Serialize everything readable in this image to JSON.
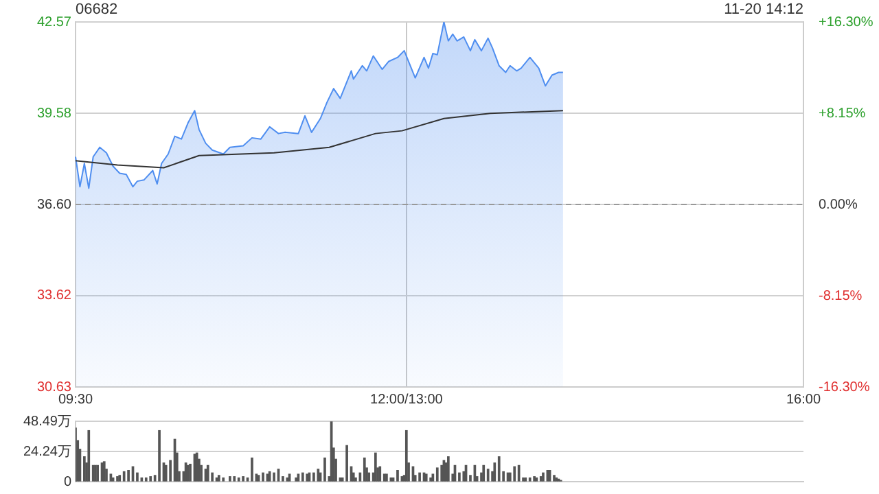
{
  "chart_data": [
    {
      "type": "line",
      "title": "06682",
      "annotations": [
        "11-20 14:12"
      ],
      "categories": [
        "09:30",
        null,
        null,
        null,
        null,
        null,
        null,
        null,
        null,
        null,
        null,
        null,
        null,
        null,
        null,
        null,
        null,
        null,
        null,
        null,
        null,
        null,
        null,
        null,
        null,
        null,
        null,
        null,
        null,
        null,
        null,
        null,
        null,
        null,
        null,
        null,
        null,
        null,
        null,
        null,
        null,
        null,
        null,
        null,
        null,
        null,
        null,
        null,
        null,
        null,
        null,
        null,
        null,
        null,
        null,
        null,
        null,
        null,
        null,
        null,
        null,
        null,
        null,
        null,
        null,
        null,
        null,
        null,
        null,
        null,
        null,
        null,
        null,
        null,
        null,
        null,
        null,
        null,
        null,
        null,
        null,
        null,
        null,
        null,
        null,
        null,
        null,
        null,
        null,
        null,
        null,
        null,
        null,
        null,
        null,
        null,
        null,
        null,
        null,
        null,
        null,
        null,
        null,
        null,
        null,
        null,
        null,
        null,
        null,
        null,
        null,
        null,
        null,
        null,
        null,
        null,
        null,
        null,
        null,
        null,
        null,
        null,
        null,
        null,
        null,
        null,
        null,
        null,
        null,
        null,
        null,
        null,
        null,
        null,
        null,
        null,
        null,
        null,
        null,
        null,
        null,
        null,
        null,
        null,
        null,
        null,
        null,
        null,
        null,
        null,
        "12:00/13:00",
        null,
        null,
        null,
        null,
        null,
        null,
        null,
        null,
        null,
        null,
        null,
        null,
        null,
        null,
        null,
        null,
        null,
        null,
        null,
        null,
        null,
        null,
        null,
        null,
        null,
        null,
        null,
        null,
        null,
        null,
        null,
        null,
        null,
        null,
        null,
        null,
        null,
        null,
        null,
        null,
        null,
        null,
        null,
        null,
        null,
        null,
        null,
        null,
        null,
        null,
        null,
        null,
        null,
        null,
        null,
        null,
        null,
        null,
        null,
        null,
        null,
        null,
        null,
        null,
        null,
        null,
        null,
        null,
        null,
        null,
        null,
        null,
        null,
        null,
        null,
        null,
        null,
        null,
        null,
        null,
        null,
        null,
        null,
        null,
        null,
        null,
        null,
        null,
        null,
        null,
        null,
        null,
        null,
        null,
        null,
        null,
        null,
        null,
        null,
        null,
        null,
        null,
        null,
        null,
        null,
        null,
        null,
        null,
        null,
        null,
        null,
        null,
        null,
        null,
        null,
        null,
        null,
        null,
        null,
        null,
        null,
        null,
        null,
        null,
        null,
        null,
        null,
        null,
        null,
        null,
        null,
        null,
        null,
        null,
        null,
        null,
        null,
        null,
        null,
        null,
        null,
        null,
        null,
        null,
        null,
        null,
        null,
        null,
        null,
        null,
        null,
        null,
        null,
        null,
        null,
        null,
        null,
        null,
        null,
        null,
        null,
        null,
        null,
        null,
        null,
        null,
        null,
        null,
        null,
        null,
        null,
        null,
        null,
        null,
        null,
        null,
        null,
        null,
        null,
        "16:00"
      ],
      "ylim": [
        30.63,
        42.57
      ],
      "yticks": [
        30.63,
        33.62,
        {
          "value": 36.6,
          "label": "36.60"
        },
        39.58,
        42.57
      ],
      "y2lim": [
        -16.3,
        16.3
      ],
      "y2ticks": [
        {
          "value": -16.3,
          "label": "-16.30%"
        },
        {
          "value": -8.15,
          "label": "-8.15%"
        },
        {
          "value": 0,
          "label": "0.00%"
        },
        {
          "value": 8.15,
          "label": "+8.15%"
        },
        {
          "value": 16.3,
          "label": "+16.30%"
        }
      ],
      "ref_lines": [
        {
          "axis": "y",
          "value": 36.6,
          "color": "#999999",
          "line_style": "dashed"
        }
      ],
      "grid": true,
      "marker": "none",
      "line_style": "solid",
      "series": [
        {
          "type": "area",
          "color": "#4f8ef0",
          "values": [
            38.16,
            null,
            37.18,
            null,
            37.94,
            null,
            37.13,
            null,
            38.16,
            null,
            null,
            38.47,
            null,
            null,
            38.29,
            null,
            null,
            37.85,
            null,
            null,
            37.62,
            null,
            null,
            37.58,
            null,
            null,
            37.18,
            null,
            37.36,
            null,
            null,
            37.4,
            null,
            null,
            null,
            37.71,
            null,
            37.27,
            null,
            37.94,
            null,
            null,
            38.25,
            null,
            null,
            38.83,
            null,
            null,
            38.74,
            null,
            null,
            39.27,
            null,
            null,
            39.67,
            null,
            39.05,
            null,
            null,
            38.6,
            null,
            null,
            38.38,
            null,
            null,
            null,
            null,
            38.25,
            null,
            null,
            38.47,
            null,
            null,
            null,
            null,
            null,
            38.52,
            null,
            null,
            null,
            38.78,
            null,
            null,
            null,
            38.74,
            null,
            null,
            null,
            39.14,
            null,
            null,
            null,
            38.92,
            null,
            null,
            38.96,
            null,
            null,
            null,
            null,
            null,
            38.92,
            null,
            null,
            39.5,
            null,
            null,
            38.96,
            null,
            null,
            null,
            39.41,
            null,
            null,
            39.94,
            null,
            null,
            40.39,
            null,
            null,
            40.07,
            null,
            null,
            40.61,
            null,
            40.97,
            40.7,
            null,
            null,
            null,
            41.14,
            null,
            40.97,
            null,
            null,
            41.46,
            null,
            null,
            null,
            41.02,
            null,
            null,
            41.28,
            null,
            null,
            null,
            41.41,
            null,
            null,
            41.63,
            null,
            null,
            null,
            null,
            40.74,
            null,
            null,
            null,
            41.41,
            null,
            41.06,
            null,
            41.54,
            null,
            41.5,
            null,
            null,
            42.57,
            null,
            41.95,
            null,
            42.17,
            null,
            41.95,
            null,
            null,
            42.08,
            null,
            null,
            41.63,
            null,
            41.99,
            null,
            null,
            41.63,
            null,
            null,
            42.04,
            null,
            41.72,
            null,
            null,
            41.14,
            null,
            null,
            40.92,
            null,
            41.14,
            null,
            null,
            40.97,
            null,
            41.06,
            null,
            null,
            null,
            41.41,
            null,
            null,
            null,
            41.06,
            null,
            null,
            40.48,
            null,
            null,
            40.83,
            null,
            null,
            40.92,
            null,
            40.92,
            null,
            null,
            null,
            null,
            null,
            null,
            null,
            null,
            null,
            null,
            null,
            null,
            null,
            null,
            null,
            null,
            null,
            null,
            null,
            null,
            null,
            null,
            null,
            null,
            null,
            null,
            null,
            null,
            null,
            null,
            null,
            null,
            null,
            null,
            null,
            null,
            null,
            null,
            null,
            null,
            null,
            null,
            null,
            null,
            null,
            null,
            null,
            null,
            null,
            null,
            null,
            null,
            null,
            null,
            null,
            null,
            null,
            null,
            null,
            null,
            null,
            null,
            null,
            null,
            null,
            null,
            null,
            null,
            null,
            null,
            null,
            null,
            null,
            null,
            null,
            null,
            null,
            null,
            null,
            null,
            null,
            null,
            null,
            null,
            null,
            null,
            null,
            null,
            null,
            null,
            null,
            null,
            null,
            null,
            null,
            null,
            null,
            null,
            null,
            null,
            null,
            null,
            null,
            null,
            null,
            null,
            null,
            null,
            null
          ]
        },
        {
          "type": "line",
          "color": "#333333",
          "values": [
            38.03,
            null,
            null,
            null,
            null,
            null,
            null,
            null,
            null,
            null,
            null,
            null,
            null,
            null,
            null,
            null,
            null,
            null,
            null,
            37.89,
            null,
            null,
            null,
            null,
            null,
            null,
            null,
            null,
            null,
            null,
            null,
            null,
            null,
            null,
            null,
            null,
            null,
            null,
            null,
            null,
            37.8,
            null,
            null,
            null,
            null,
            null,
            null,
            null,
            null,
            null,
            null,
            null,
            null,
            null,
            null,
            null,
            38.2,
            null,
            null,
            null,
            null,
            null,
            null,
            null,
            null,
            null,
            null,
            null,
            null,
            null,
            null,
            null,
            null,
            null,
            null,
            null,
            null,
            null,
            null,
            null,
            null,
            null,
            null,
            null,
            null,
            null,
            null,
            null,
            null,
            null,
            38.29,
            null,
            null,
            null,
            null,
            null,
            null,
            null,
            null,
            null,
            null,
            null,
            null,
            null,
            null,
            null,
            null,
            null,
            null,
            null,
            null,
            null,
            null,
            null,
            null,
            38.47,
            null,
            null,
            null,
            null,
            null,
            null,
            null,
            null,
            null,
            null,
            null,
            null,
            null,
            null,
            null,
            null,
            null,
            null,
            null,
            null,
            38.92,
            null,
            null,
            null,
            null,
            null,
            null,
            null,
            null,
            null,
            null,
            null,
            39.01,
            null,
            null,
            null,
            null,
            null,
            null,
            null,
            null,
            null,
            null,
            null,
            null,
            null,
            null,
            null,
            null,
            null,
            null,
            39.41,
            null,
            null,
            null,
            null,
            null,
            null,
            null,
            null,
            null,
            null,
            null,
            null,
            null,
            null,
            null,
            null,
            null,
            null,
            null,
            null,
            39.58,
            null,
            null,
            null,
            null,
            null,
            null,
            null,
            null,
            null,
            null,
            null,
            null,
            null,
            null,
            null,
            null,
            null,
            null,
            null,
            null,
            null,
            null,
            null,
            null,
            null,
            null,
            null,
            null,
            null,
            null,
            null,
            null,
            39.67,
            null,
            null,
            null,
            null,
            null,
            null,
            null,
            null,
            null,
            null,
            null,
            null,
            null,
            null,
            null,
            null,
            null,
            null,
            null,
            null,
            null,
            null,
            null,
            null,
            null,
            null,
            null,
            null,
            null,
            null,
            null,
            null,
            null,
            null,
            null,
            null,
            null,
            null,
            null,
            null,
            null,
            null,
            null,
            null,
            null,
            null,
            null,
            null,
            null,
            null,
            null,
            null,
            null,
            null,
            null,
            null,
            null,
            null,
            null,
            null,
            null,
            null,
            null,
            null,
            null,
            null,
            null,
            null,
            null,
            null,
            null,
            null,
            null,
            null,
            null,
            null,
            null,
            null,
            null,
            null,
            null,
            null,
            null,
            null,
            null,
            null,
            null,
            null,
            null,
            null,
            null,
            null,
            null,
            null,
            null,
            null,
            null,
            null,
            null,
            null,
            null,
            null,
            null,
            null,
            null,
            null,
            null,
            null,
            null
          ]
        }
      ]
    },
    {
      "type": "bar",
      "color": "#555555",
      "tick_labels": "y",
      "grid": "y",
      "categories": [
        null,
        null,
        null,
        null,
        null,
        null,
        null,
        null,
        null,
        null,
        null,
        null,
        null,
        null,
        null,
        null,
        null,
        null,
        null,
        null,
        null,
        null,
        null,
        null,
        null,
        null,
        null,
        null,
        null,
        null,
        null,
        null,
        null,
        null,
        null,
        null,
        null,
        null,
        null,
        null,
        null,
        null,
        null,
        null,
        null,
        null,
        null,
        null,
        null,
        null,
        null,
        null,
        null,
        null,
        null,
        null,
        null,
        null,
        null,
        null,
        null,
        null,
        null,
        null,
        null,
        null,
        null,
        null,
        null,
        null,
        null,
        null,
        null,
        null,
        null,
        null,
        null,
        null,
        null,
        null,
        null,
        null,
        null,
        null,
        null,
        null,
        null,
        null,
        null,
        null,
        null,
        null,
        null,
        null,
        null,
        null,
        null,
        null,
        null,
        null,
        null,
        null,
        null,
        null,
        null,
        null,
        null,
        null,
        null,
        null,
        null,
        null,
        null,
        null,
        null,
        null,
        null,
        null,
        null,
        null,
        null,
        null,
        null,
        null,
        null,
        null,
        null,
        null,
        null,
        null,
        null,
        null,
        null,
        null,
        null,
        null,
        null,
        null,
        null,
        null,
        null,
        null,
        null,
        null,
        null,
        null,
        null,
        null,
        null,
        null,
        null,
        null,
        null,
        null,
        null,
        null,
        null,
        null,
        null,
        null,
        null,
        null,
        null,
        null,
        null,
        null,
        null,
        null,
        null,
        null,
        null,
        null,
        null,
        null,
        null,
        null,
        null,
        null,
        null,
        null,
        null,
        null,
        null,
        null,
        null,
        null,
        null,
        null,
        null,
        null,
        null,
        null,
        null,
        null,
        null,
        null,
        null,
        null,
        null,
        null,
        null,
        null,
        null,
        null,
        null,
        null,
        null,
        null,
        null,
        null,
        null,
        null,
        null,
        null,
        null,
        null,
        null,
        null,
        null,
        null,
        null,
        null,
        null,
        null,
        null,
        null,
        null,
        null,
        null,
        null,
        null,
        null,
        null,
        null,
        null,
        null,
        null,
        null,
        null,
        null,
        null,
        null,
        null,
        null,
        null,
        null,
        null,
        null,
        null,
        null,
        null,
        null,
        null,
        null,
        null,
        null,
        null,
        null,
        null,
        null,
        null,
        null,
        null,
        null,
        null,
        null,
        null,
        null,
        null,
        null,
        null,
        null,
        null,
        null,
        null,
        null,
        null,
        null,
        null,
        null,
        null,
        null,
        null,
        null,
        null,
        null,
        null,
        null,
        null,
        null,
        null,
        null,
        null,
        null,
        null,
        null,
        null,
        null,
        null,
        null,
        null,
        null,
        null,
        null,
        null,
        null,
        null,
        null,
        null,
        null,
        null,
        null,
        null,
        null,
        null,
        null,
        null,
        null,
        null,
        null,
        null,
        null,
        null,
        null,
        null,
        null,
        null,
        null,
        null,
        null,
        null
      ],
      "ylim": [
        0,
        48.49
      ],
      "yticks": [
        0,
        {
          "value": 24.24,
          "label": "24.24万"
        },
        {
          "value": 48.49,
          "label": "48.49万"
        }
      ],
      "values": [
        43,
        33,
        26,
        null,
        20,
        15,
        41,
        null,
        13,
        13,
        13,
        null,
        15,
        16,
        10,
        null,
        6,
        3,
        null,
        4,
        5,
        null,
        8,
        null,
        9,
        null,
        12,
        null,
        7,
        null,
        3,
        null,
        3,
        null,
        4,
        null,
        5,
        null,
        41,
        null,
        15,
        13,
        null,
        17,
        null,
        34,
        23,
        8,
        null,
        8,
        15,
        13,
        14,
        null,
        22,
        23,
        18,
        13,
        null,
        10,
        13,
        null,
        7,
        null,
        3,
        5,
        null,
        3,
        null,
        null,
        4,
        null,
        4,
        null,
        3,
        null,
        4,
        null,
        3,
        null,
        19,
        null,
        6,
        5,
        null,
        7,
        null,
        6,
        8,
        null,
        7,
        null,
        10,
        null,
        4,
        null,
        3,
        6,
        null,
        null,
        3,
        6,
        null,
        7,
        null,
        6,
        7,
        null,
        7,
        null,
        10,
        7,
        null,
        19,
        null,
        4,
        48,
        27,
        18,
        null,
        3,
        3,
        null,
        29,
        null,
        12,
        7,
        3,
        null,
        7,
        null,
        19,
        11,
        7,
        null,
        7,
        23,
        11,
        12,
        null,
        6,
        6,
        null,
        3,
        3,
        null,
        9,
        null,
        4,
        5,
        41,
        15,
        null,
        12,
        5,
        null,
        7,
        null,
        7,
        6,
        null,
        3,
        6,
        null,
        11,
        null,
        13,
        17,
        15,
        20,
        null,
        6,
        13,
        null,
        7,
        null,
        8,
        13,
        null,
        5,
        null,
        13,
        4,
        null,
        7,
        13,
        null,
        10,
        null,
        8,
        15,
        null,
        20,
        null,
        8,
        null,
        7,
        7,
        null,
        12,
        null,
        13,
        null,
        3,
        3,
        null,
        3,
        null,
        4,
        3,
        null,
        4,
        7,
        null,
        9,
        9,
        null,
        5,
        3,
        2,
        1,
        null,
        null,
        null,
        null,
        null,
        null,
        null,
        null,
        null,
        null,
        null,
        null,
        null,
        null,
        null,
        null,
        null,
        null,
        null,
        null,
        null,
        null,
        null,
        null,
        null,
        null,
        null,
        null,
        null,
        null,
        null,
        null,
        null,
        null,
        null,
        null,
        null,
        null,
        null,
        null,
        null,
        null,
        null,
        null,
        null,
        null,
        null,
        null,
        null,
        null,
        null,
        null,
        null,
        null,
        null,
        null,
        null,
        null,
        null,
        null,
        null,
        null,
        null,
        null,
        null,
        null,
        null,
        null,
        null,
        null,
        null,
        null,
        null,
        null,
        null,
        null,
        null,
        null,
        null,
        null,
        null,
        null,
        null,
        null,
        null,
        null,
        null,
        null,
        null,
        null,
        null,
        null,
        null,
        null,
        null,
        null,
        null,
        null,
        null,
        null,
        null,
        null,
        null,
        null,
        null,
        null,
        null,
        null,
        null,
        null
      ]
    }
  ]
}
